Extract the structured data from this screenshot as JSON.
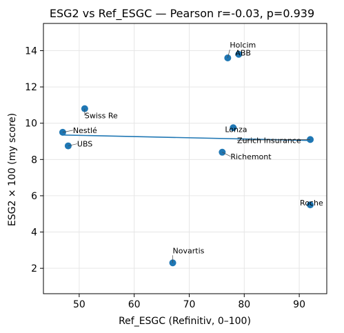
{
  "chart_data": {
    "type": "scatter",
    "title": "ESG2 vs Ref_ESGC — Pearson r=-0.03, p=0.939",
    "xlabel": "Ref_ESGC (Refinitiv, 0–100)",
    "ylabel": "ESG2 × 100 (my score)",
    "xlim": [
      43.5,
      95
    ],
    "ylim": [
      0.6,
      15.5
    ],
    "xticks": [
      50,
      60,
      70,
      80,
      90
    ],
    "yticks": [
      2,
      4,
      6,
      8,
      10,
      12,
      14
    ],
    "grid": true,
    "marker_color": "#1f77b4",
    "line_color": "#1f77b4",
    "points": [
      {
        "name": "Holcim",
        "x": 77,
        "y": 13.6
      },
      {
        "name": "ABB",
        "x": 79,
        "y": 13.8
      },
      {
        "name": "Swiss Re",
        "x": 51,
        "y": 10.8
      },
      {
        "name": "Nestlé",
        "x": 47,
        "y": 9.5
      },
      {
        "name": "UBS",
        "x": 48,
        "y": 8.75
      },
      {
        "name": "Lonza",
        "x": 78,
        "y": 9.75
      },
      {
        "name": "Zurich Insurance",
        "x": 92,
        "y": 9.1
      },
      {
        "name": "Richemont",
        "x": 76,
        "y": 8.4
      },
      {
        "name": "Roche",
        "x": 92,
        "y": 5.5
      },
      {
        "name": "Novartis",
        "x": 67,
        "y": 2.3
      }
    ],
    "fit_line": {
      "x": [
        47,
        92
      ],
      "y": [
        9.35,
        9.05
      ]
    }
  }
}
